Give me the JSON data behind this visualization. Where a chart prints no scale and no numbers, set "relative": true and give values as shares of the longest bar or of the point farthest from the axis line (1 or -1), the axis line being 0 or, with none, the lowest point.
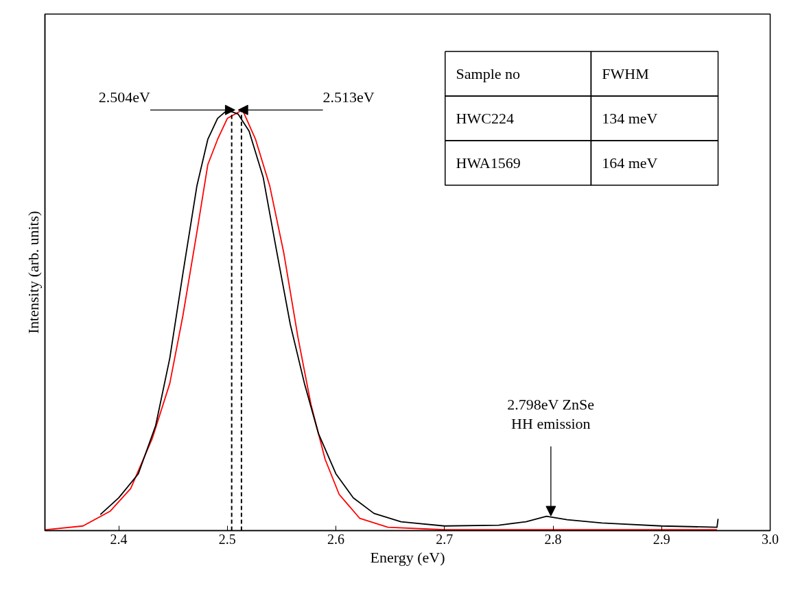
{
  "chart_data": {
    "type": "line",
    "relative": true,
    "xlabel": "Energy (eV)",
    "ylabel": "Intensity (arb. units)",
    "xlim": [
      2.332,
      3.0
    ],
    "xticks": [
      2.4,
      2.5,
      2.6,
      2.7,
      2.8,
      2.9,
      {
        "value": 3.0,
        "label": "3.0"
      }
    ],
    "tick_labels": "x",
    "grid": false,
    "series": [
      {
        "color": "#ff0000",
        "x": [
          2.332,
          2.367,
          2.392,
          2.411,
          2.431,
          2.447,
          2.459,
          2.472,
          2.482,
          2.491,
          2.5,
          2.514,
          2.526,
          2.539,
          2.552,
          2.565,
          2.577,
          2.59,
          2.603,
          2.622,
          2.648,
          2.7,
          2.801,
          2.951
        ],
        "values": [
          0.002,
          0.011,
          0.046,
          0.1,
          0.22,
          0.35,
          0.51,
          0.71,
          0.87,
          0.93,
          0.98,
          1.0,
          0.93,
          0.82,
          0.66,
          0.46,
          0.3,
          0.17,
          0.086,
          0.029,
          0.008,
          0.002,
          0.002,
          0.002
        ]
      },
      {
        "color": "#000000",
        "x": [
          2.383,
          2.4,
          2.418,
          2.434,
          2.447,
          2.459,
          2.472,
          2.482,
          2.491,
          2.5,
          2.51,
          2.52,
          2.533,
          2.545,
          2.558,
          2.571,
          2.584,
          2.6,
          2.616,
          2.635,
          2.66,
          2.7,
          2.75,
          2.775,
          2.794,
          2.813,
          2.845,
          2.9,
          2.951,
          2.952
        ],
        "values": [
          0.038,
          0.078,
          0.135,
          0.25,
          0.41,
          0.61,
          0.82,
          0.93,
          0.98,
          1.0,
          0.99,
          0.95,
          0.84,
          0.67,
          0.49,
          0.35,
          0.23,
          0.135,
          0.078,
          0.041,
          0.021,
          0.011,
          0.013,
          0.021,
          0.034,
          0.026,
          0.018,
          0.011,
          0.008,
          0.028
        ]
      }
    ],
    "ref_lines": [
      {
        "axis": "x",
        "value": 2.504,
        "line_style": "dashed",
        "color": "#000000"
      },
      {
        "axis": "x",
        "value": 2.513,
        "line_style": "dashed",
        "color": "#000000"
      }
    ],
    "annotations": [
      {
        "text": "2.504eV",
        "x": 2.504,
        "y": 1.0
      },
      {
        "text": "2.513eV",
        "x": 2.513,
        "y": 1.0
      },
      {
        "text": "2.798eV ZnSe\nHH emission",
        "x": 2.798,
        "y": 0.03
      },
      "Sample no",
      "FWHM",
      "HWC224",
      "134 meV",
      "HWA1569",
      "164 meV"
    ]
  }
}
